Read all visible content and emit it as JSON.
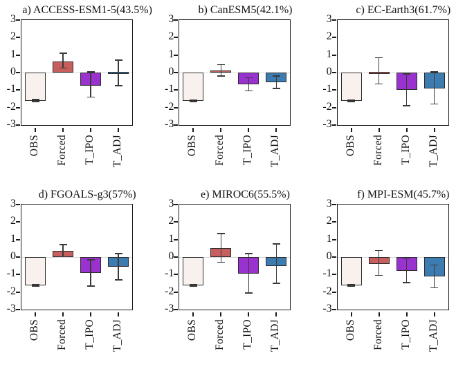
{
  "figure": {
    "background": "#ffffff",
    "categories": [
      "OBS",
      "Forced",
      "T_IPO",
      "T_ADJ"
    ],
    "bar_colors": [
      "#f8f1ee",
      "#c75f5e",
      "#9a32d0",
      "#3d7cb1"
    ],
    "bar_edge_color": "#2b2b2b",
    "error_bar_color": "#3a3a3a",
    "axis_color": "#1a1a1a",
    "zero_line_color": "#d9d9d9"
  },
  "chart_data": [
    {
      "type": "bar",
      "id": "a",
      "title": "a) ACCESS-ESM1-5(43.5%)",
      "categories": [
        "OBS",
        "Forced",
        "T_IPO",
        "T_ADJ"
      ],
      "values": [
        -1.6,
        0.65,
        -0.75,
        -0.03
      ],
      "error_low": [
        -1.66,
        0.25,
        -1.4,
        -0.75
      ],
      "error_high": [
        -1.55,
        1.1,
        0.05,
        0.7
      ],
      "ylim": [
        -3,
        3
      ],
      "yticks": [
        3,
        2,
        1,
        0,
        -1,
        -2,
        -3
      ],
      "grid": false,
      "legend": null
    },
    {
      "type": "bar",
      "id": "b",
      "title": "b) CanESM5(42.1%)",
      "categories": [
        "OBS",
        "Forced",
        "T_IPO",
        "T_ADJ"
      ],
      "values": [
        -1.6,
        0.12,
        -0.68,
        -0.55
      ],
      "error_low": [
        -1.65,
        -0.2,
        -1.05,
        -0.9
      ],
      "error_high": [
        -1.56,
        0.45,
        -0.3,
        -0.2
      ],
      "ylim": [
        -3,
        3
      ],
      "yticks": [
        3,
        2,
        1,
        0,
        -1,
        -2,
        -3
      ],
      "grid": false,
      "legend": null
    },
    {
      "type": "bar",
      "id": "c",
      "title": "c) EC-Earth3(61.7%)",
      "categories": [
        "OBS",
        "Forced",
        "T_IPO",
        "T_ADJ"
      ],
      "values": [
        -1.6,
        0.1,
        -1.0,
        -0.9
      ],
      "error_low": [
        -1.65,
        -0.65,
        -1.9,
        -1.8
      ],
      "error_high": [
        -1.56,
        0.85,
        -0.08,
        0.05
      ],
      "ylim": [
        -3,
        3
      ],
      "yticks": [
        3,
        2,
        1,
        0,
        -1,
        -2,
        -3
      ],
      "grid": false,
      "legend": null
    },
    {
      "type": "bar",
      "id": "d",
      "title": "d) FGOALS-g3(57%)",
      "categories": [
        "OBS",
        "Forced",
        "T_IPO",
        "T_ADJ"
      ],
      "values": [
        -1.6,
        0.35,
        -0.9,
        -0.55
      ],
      "error_low": [
        -1.65,
        0.02,
        -1.65,
        -1.3
      ],
      "error_high": [
        -1.56,
        0.72,
        -0.15,
        0.2
      ],
      "ylim": [
        -3,
        3
      ],
      "yticks": [
        3,
        2,
        1,
        0,
        -1,
        -2,
        -3
      ],
      "grid": false,
      "legend": null
    },
    {
      "type": "bar",
      "id": "e",
      "title": "e) MIROC6(55.5%)",
      "categories": [
        "OBS",
        "Forced",
        "T_IPO",
        "T_ADJ"
      ],
      "values": [
        -1.6,
        0.5,
        -0.95,
        -0.5
      ],
      "error_low": [
        -1.65,
        -0.3,
        -2.05,
        -1.5
      ],
      "error_high": [
        -1.56,
        1.35,
        0.2,
        0.75
      ],
      "ylim": [
        -3,
        3
      ],
      "yticks": [
        3,
        2,
        1,
        0,
        -1,
        -2,
        -3
      ],
      "grid": false,
      "legend": null
    },
    {
      "type": "bar",
      "id": "f",
      "title": "f) MPI-ESM(45.7%)",
      "categories": [
        "OBS",
        "Forced",
        "T_IPO",
        "T_ADJ"
      ],
      "values": [
        -1.6,
        -0.38,
        -0.78,
        -1.1
      ],
      "error_low": [
        -1.65,
        -1.05,
        -1.45,
        -1.75
      ],
      "error_high": [
        -1.56,
        0.38,
        -0.1,
        -0.45
      ],
      "ylim": [
        -3,
        3
      ],
      "yticks": [
        3,
        2,
        1,
        0,
        -1,
        -2,
        -3
      ],
      "grid": false,
      "legend": null
    }
  ]
}
